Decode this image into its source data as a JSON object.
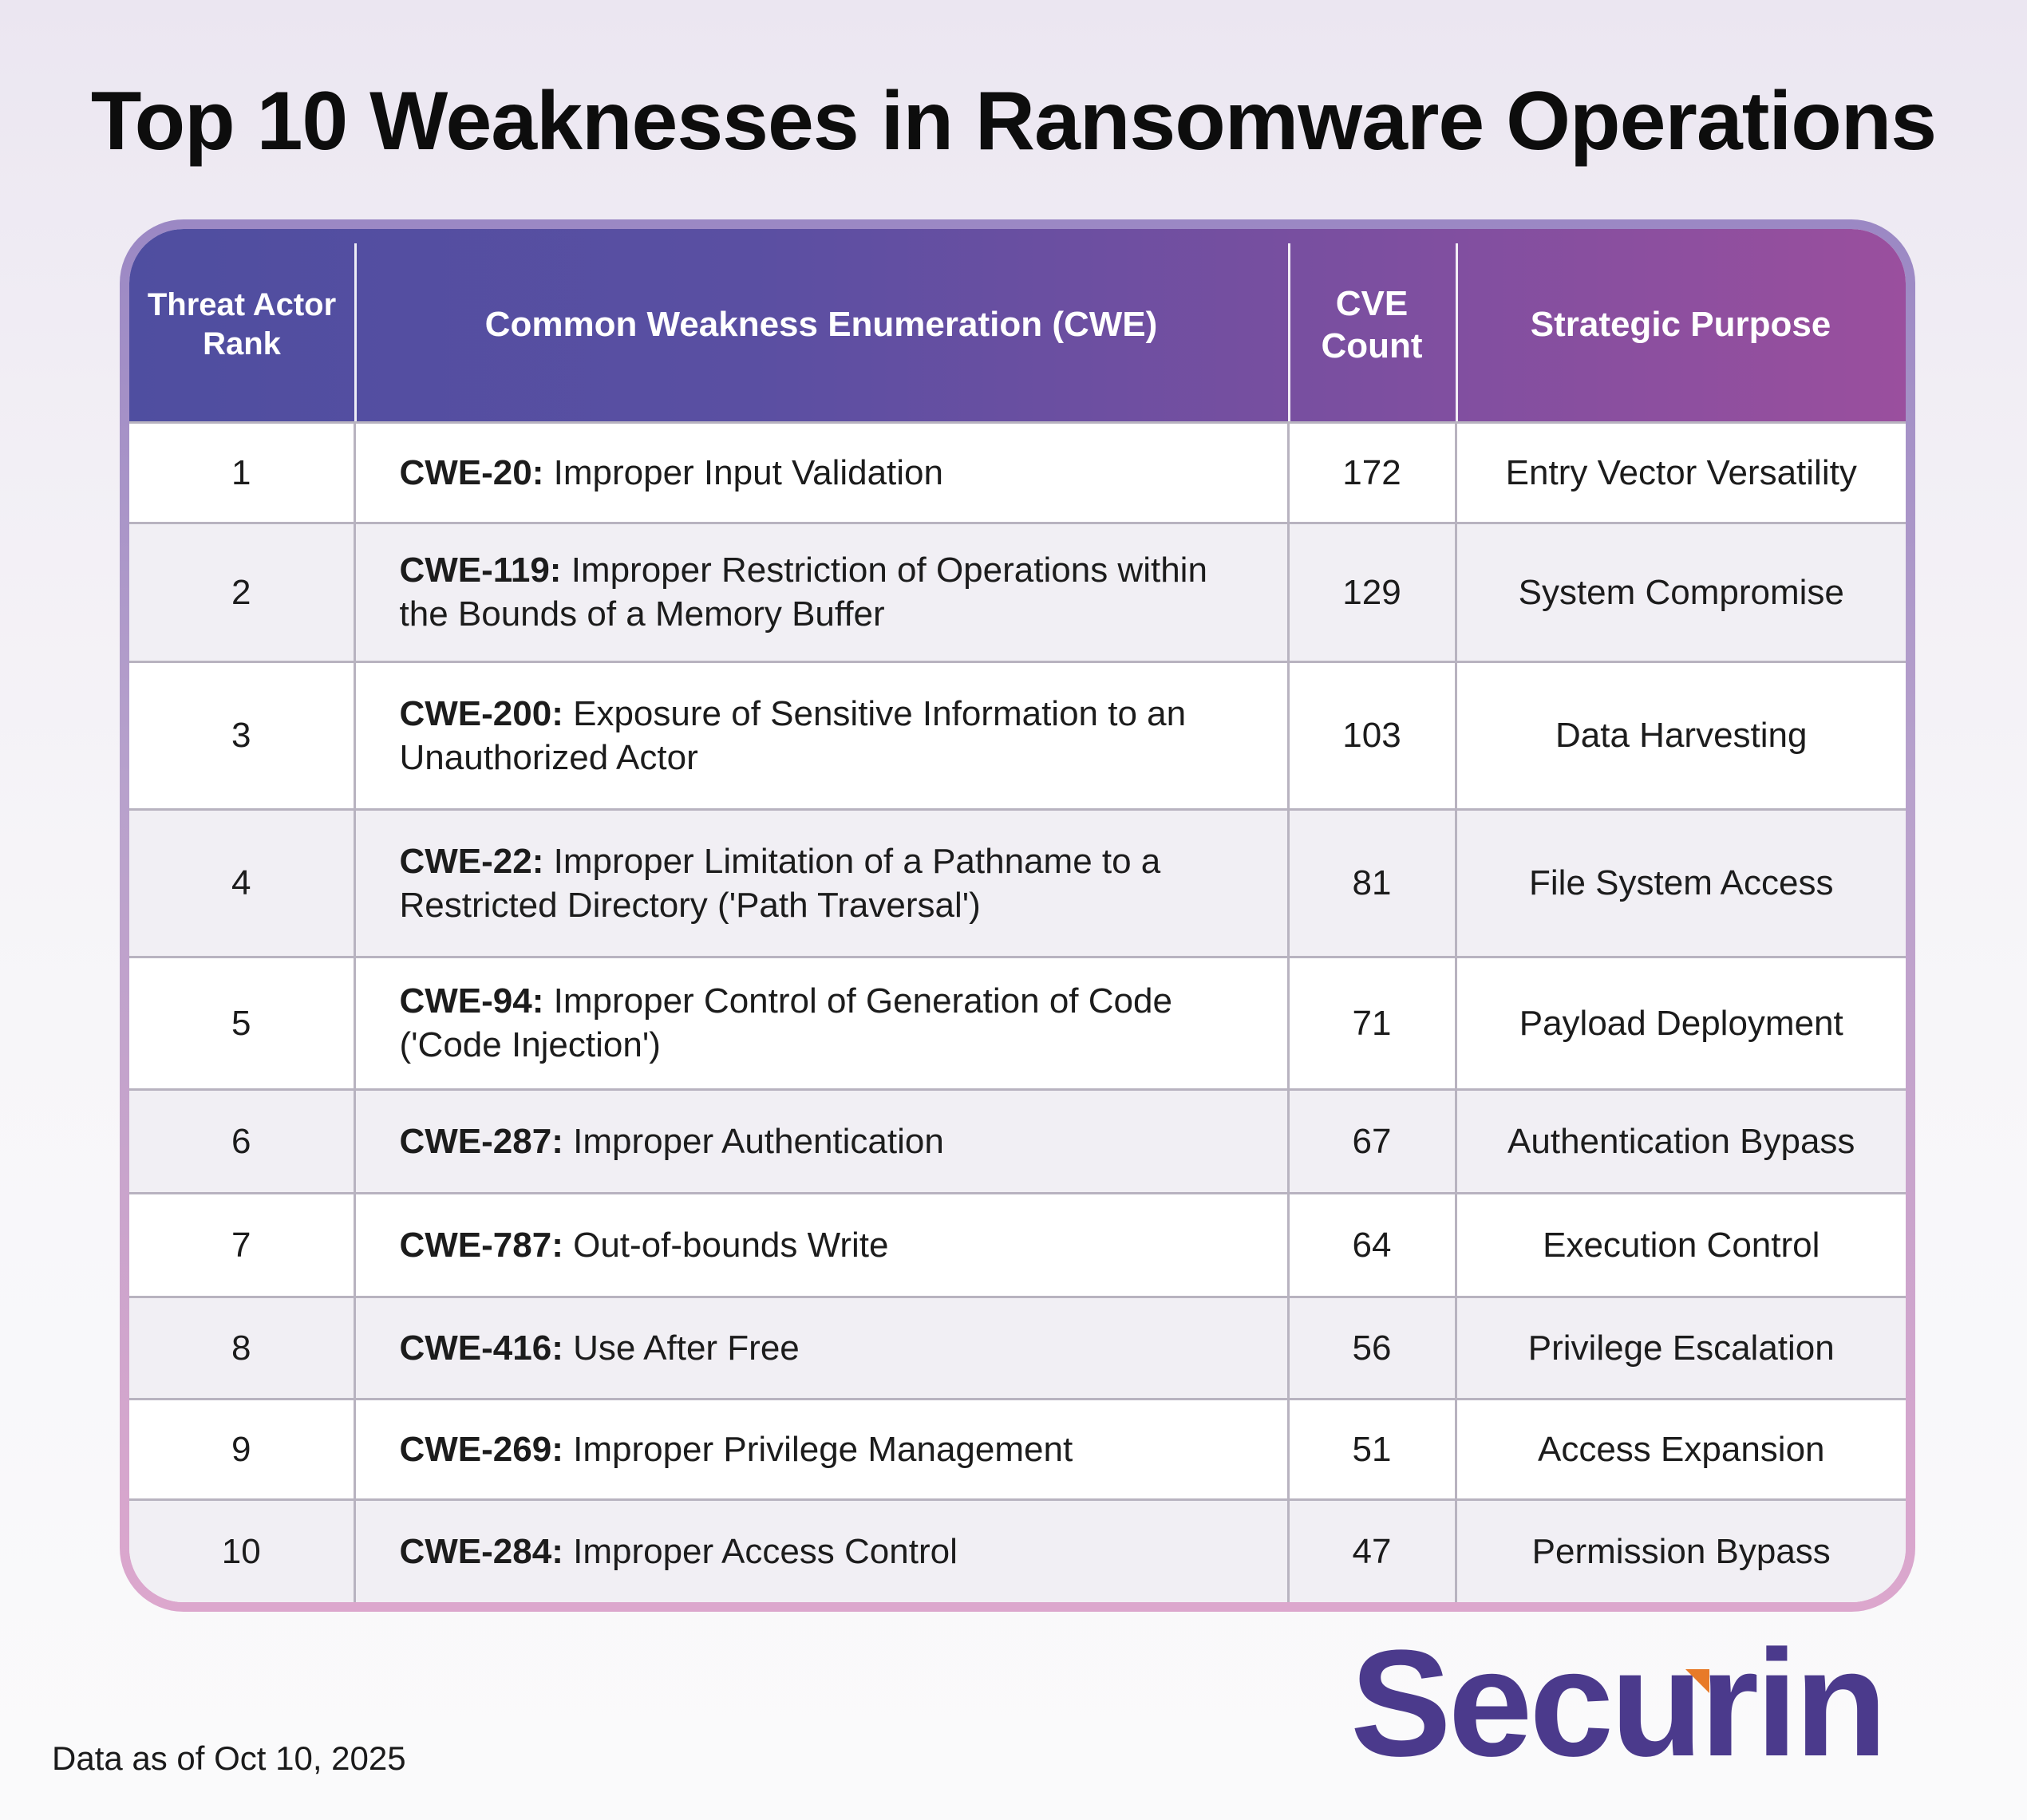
{
  "title": "Top 10 Weaknesses in Ransomware Operations",
  "columns": {
    "rank": "Threat Actor Rank",
    "cwe": "Common Weakness Enumeration (CWE)",
    "count": "CVE Count",
    "purpose": "Strategic Purpose"
  },
  "rows": [
    {
      "rank": "1",
      "cwe_id": "CWE-20:",
      "cwe_name": "Improper Input Validation",
      "count": "172",
      "purpose": "Entry Vector Versatility"
    },
    {
      "rank": "2",
      "cwe_id": "CWE-119:",
      "cwe_name": "Improper Restriction of Operations within the Bounds of a Memory Buffer",
      "count": "129",
      "purpose": "System Compromise"
    },
    {
      "rank": "3",
      "cwe_id": "CWE-200:",
      "cwe_name": "Exposure of Sensitive Information to an Unauthorized Actor",
      "count": "103",
      "purpose": "Data Harvesting"
    },
    {
      "rank": "4",
      "cwe_id": "CWE-22:",
      "cwe_name": "Improper Limitation of a Pathname to a Restricted Directory ('Path Traversal')",
      "count": "81",
      "purpose": "File System Access"
    },
    {
      "rank": "5",
      "cwe_id": "CWE-94:",
      "cwe_name": "Improper Control of Generation of Code ('Code Injection')",
      "count": "71",
      "purpose": "Payload Deployment"
    },
    {
      "rank": "6",
      "cwe_id": "CWE-287:",
      "cwe_name": "Improper Authentication",
      "count": "67",
      "purpose": "Authentication Bypass"
    },
    {
      "rank": "7",
      "cwe_id": "CWE-787:",
      "cwe_name": "Out-of-bounds Write",
      "count": "64",
      "purpose": "Execution Control"
    },
    {
      "rank": "8",
      "cwe_id": "CWE-416:",
      "cwe_name": "Use After Free",
      "count": "56",
      "purpose": "Privilege Escalation"
    },
    {
      "rank": "9",
      "cwe_id": "CWE-269:",
      "cwe_name": "Improper Privilege Management",
      "count": "51",
      "purpose": "Access Expansion"
    },
    {
      "rank": "10",
      "cwe_id": "CWE-284:",
      "cwe_name": "Improper Access Control",
      "count": "47",
      "purpose": "Permission Bypass"
    }
  ],
  "footnote": "Data as of Oct 10, 2025",
  "logo_text": "Securin",
  "colors": {
    "header_start": "#4f4ea0",
    "header_end": "#9a4f9e",
    "logo": "#4b3a8c",
    "logo_accent": "#e87a28"
  }
}
